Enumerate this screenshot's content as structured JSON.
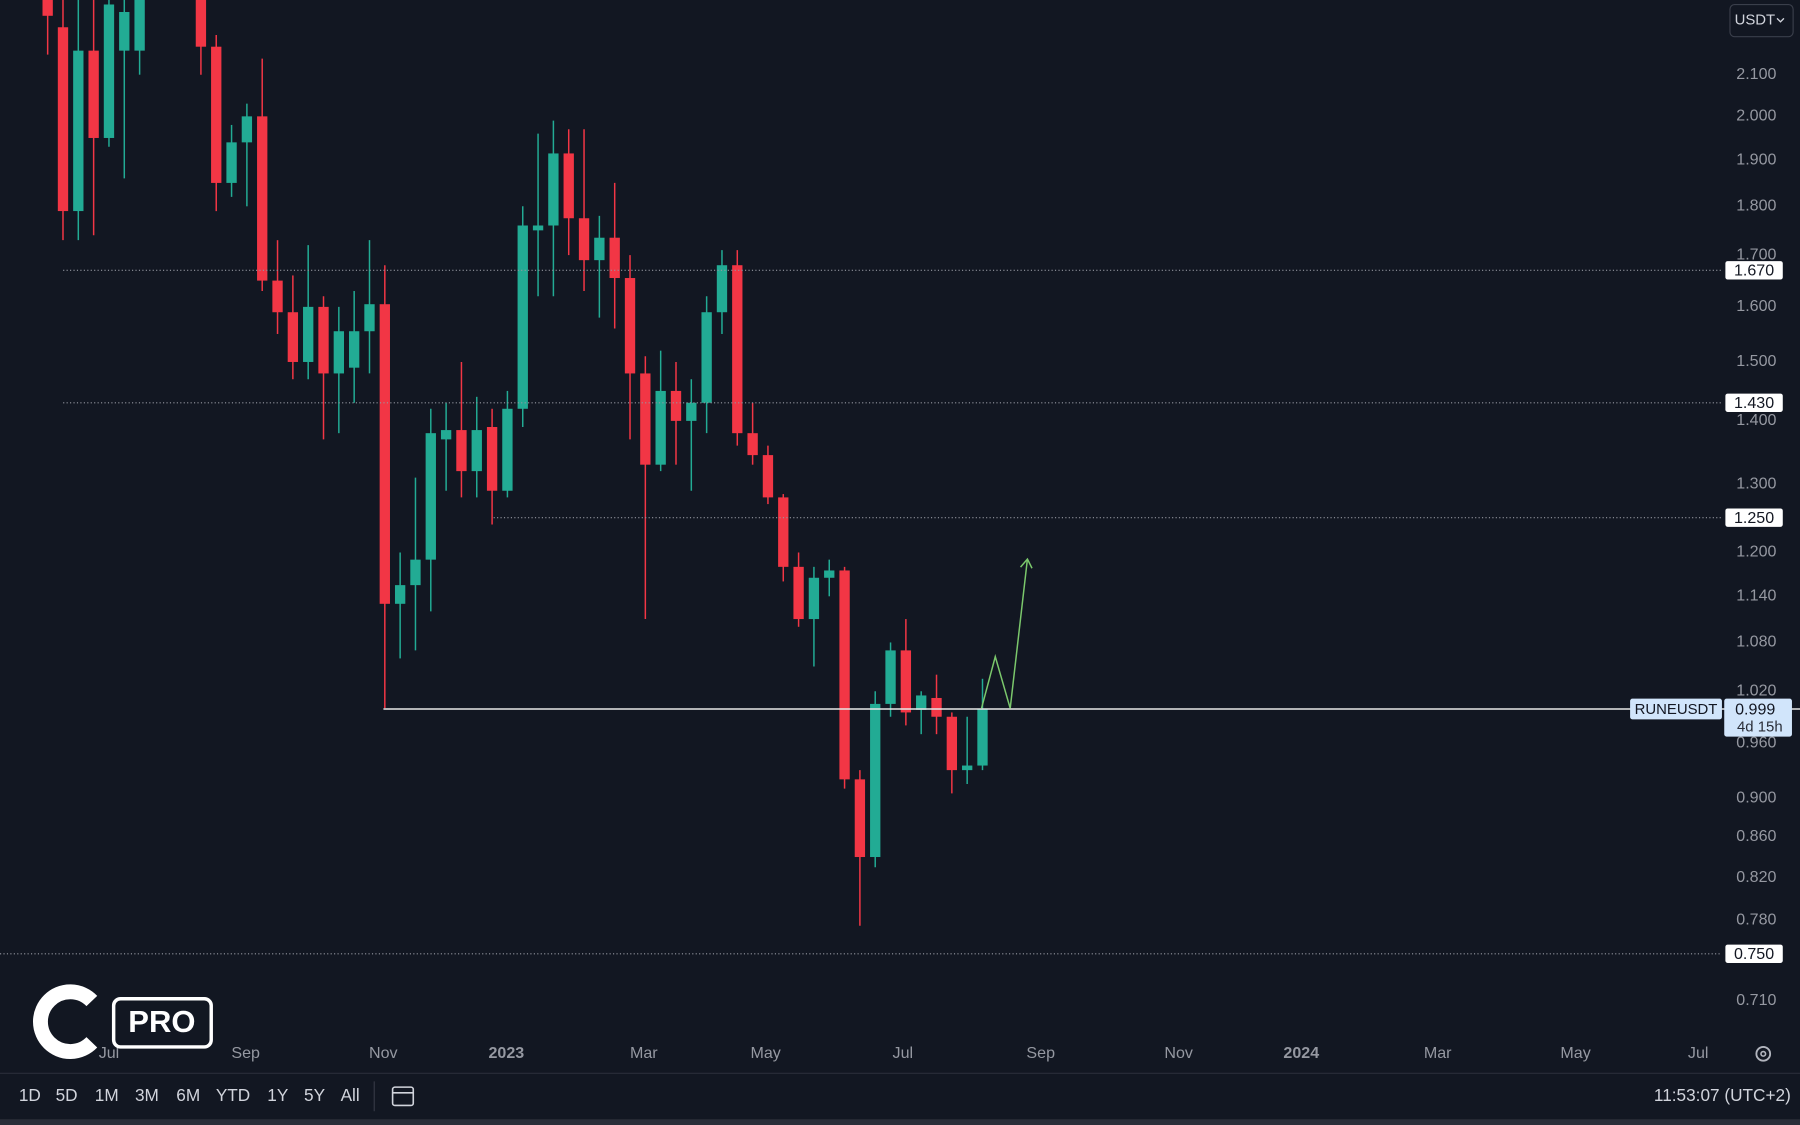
{
  "chart_data": {
    "type": "candlestick",
    "symbol": "RUNEUSDT",
    "currency": "USDT",
    "open": [
      2.4,
      2.22,
      1.79,
      2.16,
      1.95,
      2.16,
      2.16,
      null,
      null,
      null,
      2.4,
      2.17,
      1.85,
      1.94,
      2.0,
      1.65,
      1.59,
      1.5,
      1.6,
      1.48,
      1.49,
      1.555,
      1.605,
      1.13,
      1.155,
      1.19,
      1.37,
      1.385,
      1.32,
      1.39,
      1.29,
      1.42,
      1.75,
      1.76,
      1.915,
      1.775,
      1.69,
      1.735,
      1.655,
      1.48,
      1.33,
      1.45,
      1.4,
      1.43,
      1.59,
      1.68,
      1.38,
      1.345,
      1.28,
      1.18,
      1.11,
      1.165,
      1.175,
      0.92,
      0.84,
      1.005,
      1.07,
      0.998,
      1.012,
      0.99,
      0.93,
      0.935
    ],
    "high": [
      2.45,
      2.3,
      2.3,
      2.3,
      2.3,
      2.3,
      2.4,
      null,
      null,
      null,
      2.45,
      2.2,
      1.98,
      2.03,
      2.14,
      1.73,
      1.66,
      1.72,
      1.62,
      1.6,
      1.63,
      1.73,
      1.68,
      1.2,
      1.31,
      1.42,
      1.43,
      1.5,
      1.44,
      1.42,
      1.45,
      1.8,
      1.96,
      1.99,
      1.97,
      1.97,
      1.78,
      1.85,
      1.7,
      1.51,
      1.52,
      1.5,
      1.47,
      1.62,
      1.71,
      1.71,
      1.43,
      1.36,
      1.285,
      1.2,
      1.18,
      1.19,
      1.18,
      0.93,
      1.02,
      1.08,
      1.11,
      1.02,
      1.04,
      0.995,
      0.99,
      1.035
    ],
    "low": [
      2.15,
      1.73,
      1.73,
      1.74,
      1.93,
      1.86,
      2.1,
      null,
      null,
      null,
      2.1,
      1.79,
      1.82,
      1.8,
      1.63,
      1.55,
      1.47,
      1.47,
      1.37,
      1.38,
      1.43,
      1.48,
      1.0,
      1.06,
      1.07,
      1.12,
      1.29,
      1.28,
      1.28,
      1.24,
      1.28,
      1.39,
      1.62,
      1.62,
      1.7,
      1.63,
      1.58,
      1.56,
      1.37,
      1.11,
      1.32,
      1.33,
      1.29,
      1.38,
      1.55,
      1.36,
      1.33,
      1.27,
      1.16,
      1.1,
      1.05,
      1.14,
      0.91,
      0.775,
      0.83,
      0.99,
      0.98,
      0.97,
      0.97,
      0.905,
      0.915,
      0.93
    ],
    "close": [
      2.25,
      1.79,
      2.16,
      1.95,
      2.28,
      2.26,
      2.35,
      null,
      null,
      null,
      2.17,
      1.85,
      1.94,
      2.0,
      1.65,
      1.59,
      1.5,
      1.6,
      1.48,
      1.555,
      1.555,
      1.605,
      1.13,
      1.155,
      1.19,
      1.38,
      1.385,
      1.32,
      1.385,
      1.29,
      1.42,
      1.76,
      1.76,
      1.915,
      1.775,
      1.69,
      1.735,
      1.655,
      1.48,
      1.33,
      1.45,
      1.4,
      1.43,
      1.59,
      1.68,
      1.38,
      1.345,
      1.28,
      1.18,
      1.11,
      1.165,
      1.175,
      0.92,
      0.84,
      1.005,
      1.07,
      0.995,
      1.015,
      0.99,
      0.93,
      0.935,
      0.999
    ],
    "up_color": "#22ab94",
    "down_color": "#f23645",
    "log_scale": true,
    "ylim": [
      0.652,
      2.292
    ],
    "yticks": [
      {
        "value": 2.1,
        "label": "2.100"
      },
      {
        "value": 2.0,
        "label": "2.000"
      },
      {
        "value": 1.9,
        "label": "1.900"
      },
      {
        "value": 1.8,
        "label": "1.800"
      },
      {
        "value": 1.7,
        "label": "1.700"
      },
      {
        "value": 1.6,
        "label": "1.600"
      },
      {
        "value": 1.5,
        "label": "1.500"
      },
      {
        "value": 1.4,
        "label": "1.400"
      },
      {
        "value": 1.3,
        "label": "1.300"
      },
      {
        "value": 1.2,
        "label": "1.200"
      },
      {
        "value": 1.14,
        "label": "1.140"
      },
      {
        "value": 1.08,
        "label": "1.080"
      },
      {
        "value": 1.02,
        "label": "1.020"
      },
      {
        "value": 0.96,
        "label": "0.960"
      },
      {
        "value": 0.9,
        "label": "0.900"
      },
      {
        "value": 0.86,
        "label": "0.860"
      },
      {
        "value": 0.82,
        "label": "0.820"
      },
      {
        "value": 0.78,
        "label": "0.780"
      },
      {
        "value": 0.71,
        "label": "0.710"
      }
    ],
    "xlim": [
      -3.11,
      109.25
    ],
    "xticks": [
      {
        "value": 4.0,
        "label": "Jul"
      },
      {
        "value": 12.92,
        "label": "Sep"
      },
      {
        "value": 21.9,
        "label": "Nov"
      },
      {
        "value": 29.93,
        "label": "2023"
      },
      {
        "value": 38.9,
        "label": "Mar"
      },
      {
        "value": 46.85,
        "label": "May"
      },
      {
        "value": 55.8,
        "label": "Jul"
      },
      {
        "value": 64.8,
        "label": "Sep"
      },
      {
        "value": 73.8,
        "label": "Nov"
      },
      {
        "value": 81.8,
        "label": "2024"
      },
      {
        "value": 90.7,
        "label": "Mar"
      },
      {
        "value": 99.7,
        "label": "May"
      },
      {
        "value": 107.7,
        "label": "Jul"
      }
    ],
    "levels": [
      {
        "value": 1.67,
        "label": "1.670"
      },
      {
        "value": 1.43,
        "label": "1.430"
      },
      {
        "value": 1.25,
        "label": "1.250"
      },
      {
        "value": 0.75,
        "label": "0.750"
      }
    ],
    "last_price": {
      "value": 0.999,
      "label": "0.999"
    },
    "countdown": "4d 15h"
  },
  "toolbar": {
    "ranges": [
      "1D",
      "5D",
      "1M",
      "3M",
      "6M",
      "YTD",
      "1Y",
      "5Y",
      "All"
    ],
    "clock": "11:53:07 (UTC+2)"
  },
  "logo": {
    "text": "PRO"
  }
}
